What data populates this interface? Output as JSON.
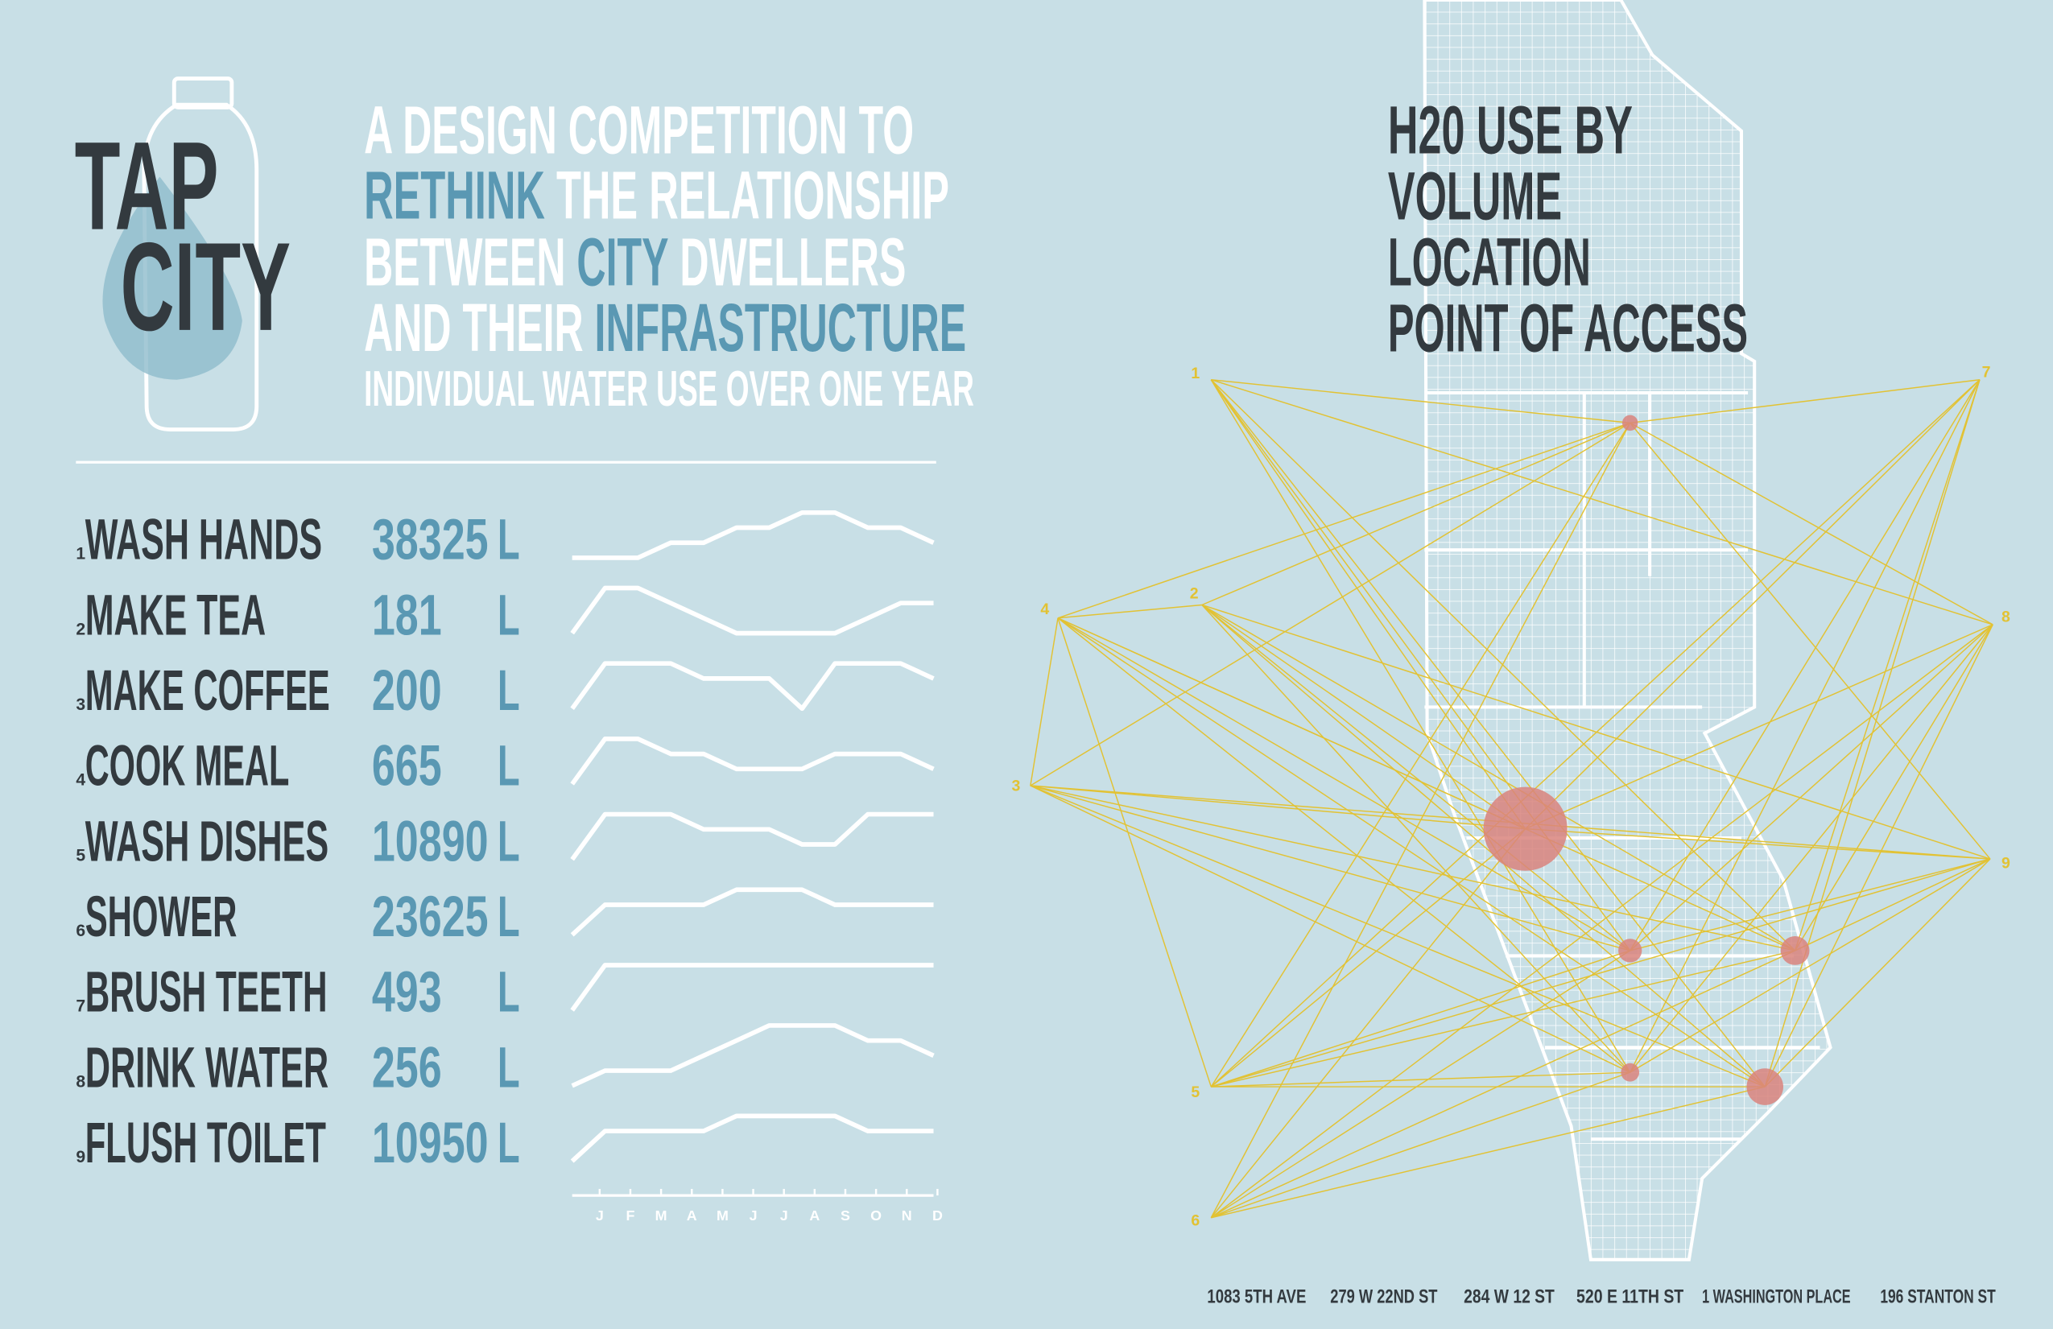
{
  "logo": {
    "line1": "TAP",
    "line2": "CITY"
  },
  "intro": {
    "lines": [
      [
        {
          "text": "A DESIGN COMPETITION TO",
          "highlight": false
        }
      ],
      [
        {
          "text": "RETHINK",
          "highlight": true
        },
        {
          "text": " THE RELATIONSHIP",
          "highlight": false
        }
      ],
      [
        {
          "text": "BETWEEN ",
          "highlight": false
        },
        {
          "text": "CITY",
          "highlight": true
        },
        {
          "text": " DWELLERS",
          "highlight": false
        }
      ],
      [
        {
          "text": "AND THEIR ",
          "highlight": false
        },
        {
          "text": "INFRASTRUCTURE",
          "highlight": true
        }
      ]
    ],
    "subtitle": "INDIVIDUAL WATER USE OVER ONE YEAR"
  },
  "activities": [
    {
      "rank": 1,
      "name": "WASH HANDS",
      "volume": 38325,
      "unit": "L",
      "trend": [
        0,
        0,
        0,
        1,
        1,
        2,
        2,
        3,
        3,
        2,
        2,
        1
      ]
    },
    {
      "rank": 2,
      "name": "MAKE TEA",
      "volume": 181,
      "unit": "L",
      "trend": [
        0,
        3,
        3,
        2,
        1,
        0,
        0,
        0,
        0,
        1,
        2,
        2
      ]
    },
    {
      "rank": 3,
      "name": "MAKE COFFEE",
      "volume": 200,
      "unit": "L",
      "trend": [
        0,
        3,
        3,
        3,
        2,
        2,
        2,
        0,
        3,
        3,
        3,
        2
      ]
    },
    {
      "rank": 4,
      "name": "COOK MEAL",
      "volume": 665,
      "unit": "L",
      "trend": [
        0,
        3,
        3,
        2,
        2,
        1,
        1,
        1,
        2,
        2,
        2,
        1
      ]
    },
    {
      "rank": 5,
      "name": "WASH DISHES",
      "volume": 10890,
      "unit": "L",
      "trend": [
        0,
        3,
        3,
        3,
        2,
        2,
        2,
        1,
        1,
        3,
        3,
        3
      ]
    },
    {
      "rank": 6,
      "name": "SHOWER",
      "volume": 23625,
      "unit": "L",
      "trend": [
        0,
        2,
        2,
        2,
        2,
        3,
        3,
        3,
        2,
        2,
        2,
        2
      ]
    },
    {
      "rank": 7,
      "name": "BRUSH TEETH",
      "volume": 493,
      "unit": "L",
      "trend": [
        0,
        3,
        3,
        3,
        3,
        3,
        3,
        3,
        3,
        3,
        3,
        3
      ]
    },
    {
      "rank": 8,
      "name": "DRINK WATER",
      "volume": 256,
      "unit": "L",
      "trend": [
        0,
        1,
        1,
        1,
        2,
        3,
        4,
        4,
        4,
        3,
        3,
        2
      ]
    },
    {
      "rank": 9,
      "name": "FLUSH TOILET",
      "volume": 10950,
      "unit": "L",
      "trend": [
        0,
        2,
        2,
        2,
        2,
        3,
        3,
        3,
        3,
        2,
        2,
        2
      ]
    }
  ],
  "trend_ylim": [
    0,
    4
  ],
  "months": [
    "J",
    "F",
    "M",
    "A",
    "M",
    "J",
    "J",
    "A",
    "S",
    "O",
    "N",
    "D"
  ],
  "map": {
    "title": [
      "H20 USE BY",
      "VOLUME",
      "LOCATION",
      "POINT OF ACCESS"
    ],
    "points": [
      1,
      2,
      3,
      4,
      5,
      6,
      7,
      8,
      9
    ],
    "addresses": [
      "1083 5TH AVE",
      "279 W 22ND ST",
      "284 W 12 ST",
      "520 E 11TH ST",
      "1 WASHINGTON PLACE",
      "196 STANTON ST"
    ]
  }
}
